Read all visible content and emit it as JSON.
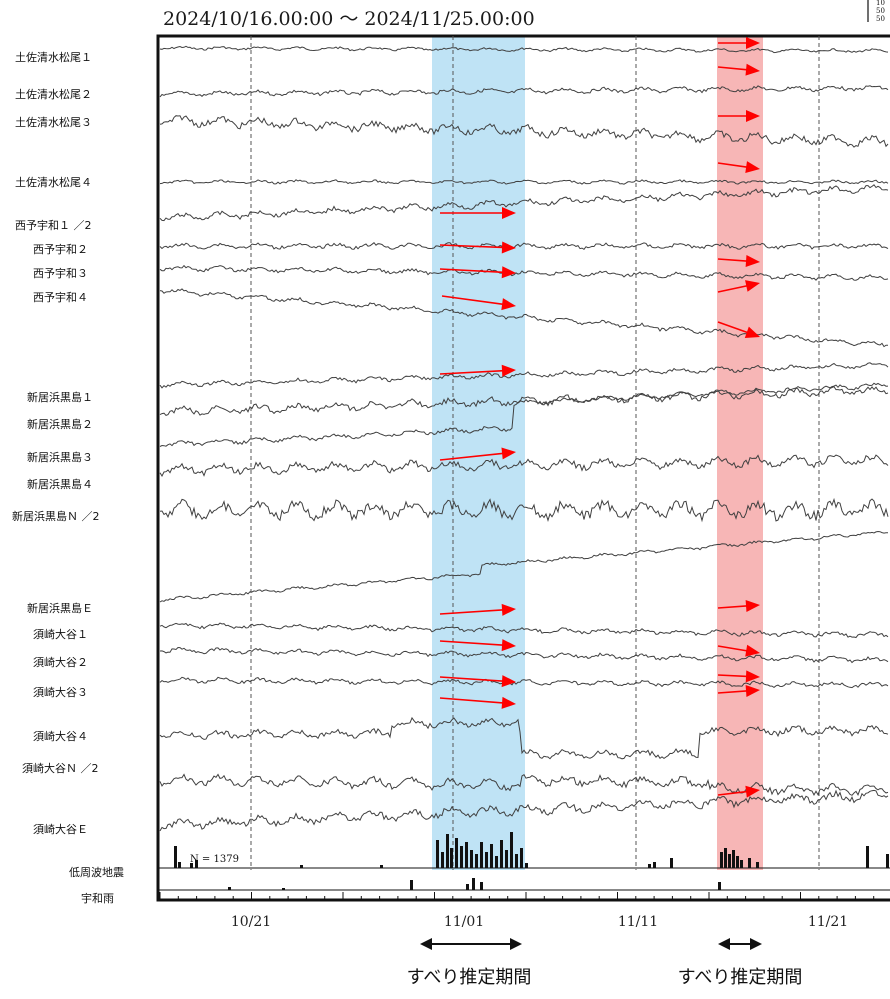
{
  "chart_data": {
    "type": "line",
    "title": "2024/10/16.00:00 ～ 2024/11/25.00:00",
    "x_range": [
      "2024/10/16",
      "2024/11/25"
    ],
    "x_ticks": [
      "10/21",
      "11/01",
      "11/11",
      "11/21"
    ],
    "grid": true,
    "channels": [
      "土佐清水松尾１",
      "土佐清水松尾２",
      "土佐清水松尾３",
      "土佐清水松尾４",
      "西予宇和１ ／2",
      "西予宇和２",
      "西予宇和３",
      "西予宇和４",
      "新居浜黒島１",
      "新居浜黒島２",
      "新居浜黒島３",
      "新居浜黒島４",
      "新居浜黒島Ｎ ／2",
      "新居浜黒島Ｅ",
      "須崎大谷１",
      "須崎大谷２",
      "須崎大谷３",
      "須崎大谷４",
      "須崎大谷Ｎ ／2",
      "須崎大谷Ｅ"
    ],
    "bottom_panels": [
      "低周波地震",
      "宇和雨"
    ],
    "event_count_label": "N =  1379",
    "shaded_periods": [
      {
        "start": "2024/10/30",
        "end": "2024/11/05",
        "color": "#bfe3f5"
      },
      {
        "start": "2024/11/14",
        "end": "2024/11/17",
        "color": "#f7b6b6"
      }
    ],
    "period_label": "すべり推定期間",
    "scale_fragment": [
      "10",
      "50",
      "50"
    ],
    "colors": {
      "trace": "#404040",
      "arrow": "#ff0000",
      "grid": "#555555"
    }
  }
}
